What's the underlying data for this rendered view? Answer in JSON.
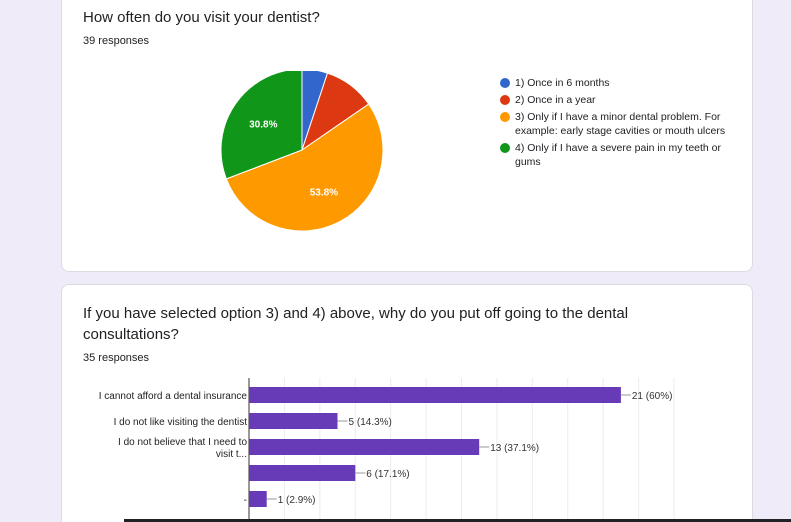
{
  "card1": {
    "question": "How often do you visit your dentist?",
    "responses": "39 responses"
  },
  "card2": {
    "question": "If you have selected option 3) and 4) above, why do you put off going to the dental consultations?",
    "responses": "35 responses"
  },
  "chart_data": [
    {
      "type": "pie",
      "slices": [
        {
          "label": "1) Once in 6 months",
          "percent": 5.1,
          "color": "#3366cc",
          "data_label": ""
        },
        {
          "label": "2) Once in a year",
          "percent": 10.3,
          "color": "#dc3912",
          "data_label": ""
        },
        {
          "label": "3) Only if I have a minor dental problem. For example: early stage cavities or mouth ulcers",
          "percent": 53.8,
          "color": "#ff9900",
          "data_label": "53.8%"
        },
        {
          "label": "4) Only if I have a severe pain in my teeth or gums",
          "percent": 30.8,
          "color": "#109618",
          "data_label": "30.8%"
        }
      ],
      "legend_position": "right"
    },
    {
      "type": "bar",
      "orientation": "horizontal",
      "categories": [
        "I cannot afford a dental insurance",
        "I do not like visiting the dentist",
        "I do not believe that I need to visit t...",
        "",
        "-"
      ],
      "values": [
        21,
        5,
        13,
        6,
        1
      ],
      "value_labels": [
        "21 (60%)",
        "5 (14.3%)",
        "13 (37.1%)",
        "6 (17.1%)",
        "1 (2.9%)"
      ],
      "color": "#673ab7",
      "xlim": [
        0,
        24
      ],
      "grid": true
    }
  ]
}
